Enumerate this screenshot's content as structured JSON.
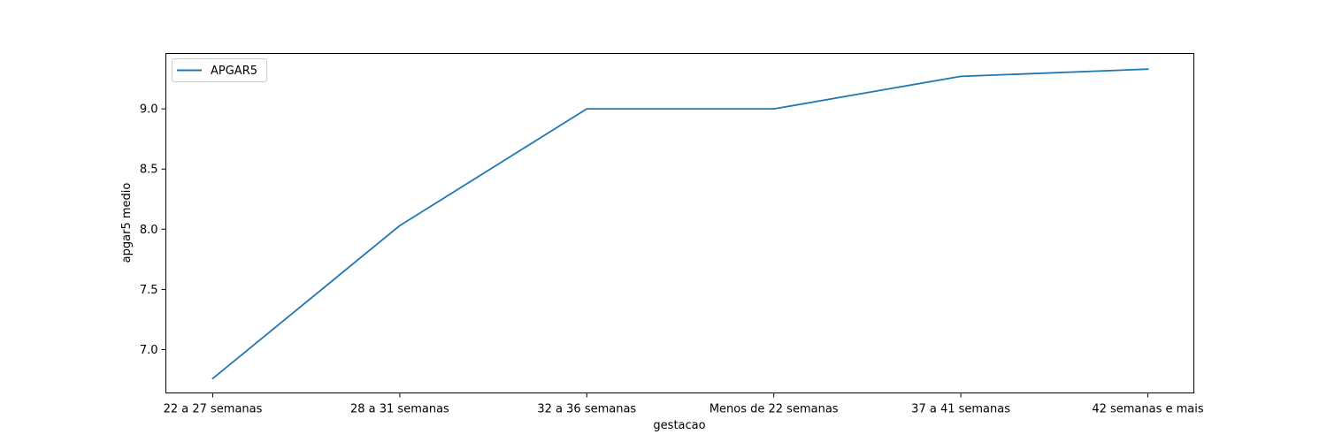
{
  "chart_data": {
    "type": "line",
    "categories": [
      "22 a 27 semanas",
      "28 a 31 semanas",
      "32 a 36 semanas",
      "Menos de 22 semanas",
      "37 a 41 semanas",
      "42 semanas e mais"
    ],
    "series": [
      {
        "name": "APGAR5",
        "values": [
          6.76,
          8.03,
          9.0,
          9.0,
          9.27,
          9.33
        ],
        "color": "#1f77b4"
      }
    ],
    "xlabel": "gestacao",
    "ylabel": "apgar5 medio",
    "ylim": [
      6.64,
      9.46
    ],
    "yticks": [
      "7.0",
      "7.5",
      "8.0",
      "8.5",
      "9.0"
    ],
    "grid": false,
    "legend_position": "top-left"
  }
}
